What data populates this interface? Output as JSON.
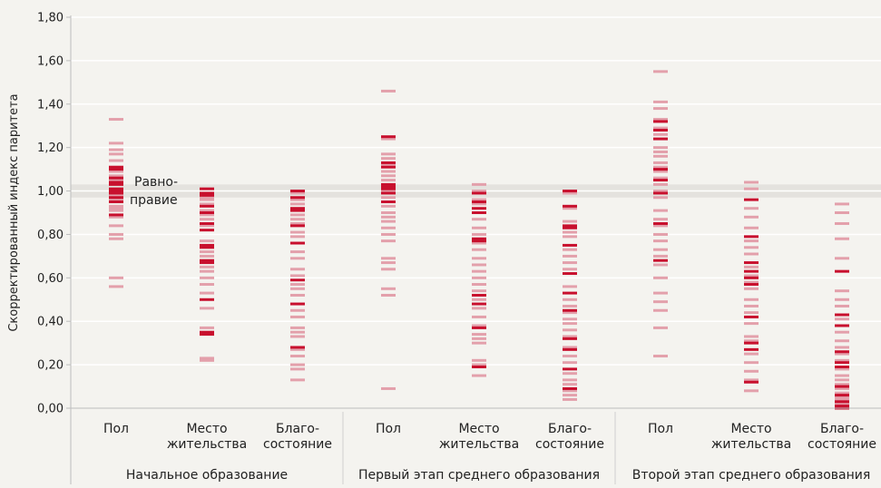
{
  "chart_data": {
    "type": "strip",
    "ylabel": "Скорректированный индекс паритета",
    "ylim": [
      0,
      1.8
    ],
    "yticks": [
      "0,00",
      "0,20",
      "0,40",
      "0,60",
      "0,80",
      "1,00",
      "1,20",
      "1,40",
      "1,60",
      "1,80"
    ],
    "parity_band": {
      "from": 0.97,
      "to": 1.03,
      "label_line1": "Равно-",
      "label_line2": "правие"
    },
    "colors": {
      "dark": "#c8102e",
      "light": "#e3a0ab",
      "band": "#e4e2de",
      "grid": "#ffffff",
      "separator": "#cfcfcf"
    },
    "groups": [
      {
        "label": "Начальное образование",
        "categories": [
          {
            "label_line1": "Пол",
            "label_line2": "",
            "light": [
              1.33,
              1.22,
              1.19,
              1.17,
              1.14,
              1.09,
              1.07,
              1.05,
              1.03,
              0.98,
              0.96,
              0.93,
              0.92,
              0.91,
              0.88,
              0.84,
              0.8,
              0.78,
              0.6,
              0.56
            ],
            "dark": [
              1.11,
              1.1,
              1.06,
              1.04,
              1.03,
              1.01,
              1.0,
              0.99,
              0.97,
              0.95,
              0.89
            ]
          },
          {
            "label_line1": "Место",
            "label_line2": "жительства",
            "light": [
              0.97,
              0.96,
              0.94,
              0.91,
              0.89,
              0.87,
              0.84,
              0.77,
              0.72,
              0.7,
              0.65,
              0.63,
              0.6,
              0.57,
              0.53,
              0.46,
              0.37,
              0.23,
              0.22
            ],
            "dark": [
              1.01,
              0.99,
              0.98,
              0.93,
              0.9,
              0.85,
              0.82,
              0.75,
              0.74,
              0.68,
              0.67,
              0.5,
              0.35,
              0.34
            ]
          },
          {
            "label_line1": "Благо-",
            "label_line2": "состояние",
            "light": [
              0.99,
              0.96,
              0.94,
              0.89,
              0.87,
              0.85,
              0.81,
              0.79,
              0.72,
              0.69,
              0.64,
              0.61,
              0.57,
              0.55,
              0.52,
              0.45,
              0.42,
              0.37,
              0.35,
              0.33,
              0.27,
              0.24,
              0.2,
              0.18,
              0.13
            ],
            "dark": [
              1.0,
              0.97,
              0.92,
              0.91,
              0.84,
              0.76,
              0.59,
              0.48,
              0.28
            ]
          }
        ]
      },
      {
        "label": "Первый этап среднего образования",
        "categories": [
          {
            "label_line1": "Пол",
            "label_line2": "",
            "light": [
              1.46,
              1.24,
              1.17,
              1.15,
              1.12,
              1.09,
              1.07,
              1.05,
              1.0,
              0.97,
              0.93,
              0.9,
              0.88,
              0.86,
              0.83,
              0.8,
              0.77,
              0.69,
              0.67,
              0.64,
              0.55,
              0.52,
              0.09
            ],
            "dark": [
              1.25,
              1.13,
              1.11,
              1.03,
              1.02,
              1.01,
              0.99,
              0.95
            ]
          },
          {
            "label_line1": "Место",
            "label_line2": "жительства",
            "light": [
              1.03,
              1.0,
              0.96,
              0.94,
              0.87,
              0.83,
              0.8,
              0.76,
              0.73,
              0.69,
              0.66,
              0.63,
              0.6,
              0.57,
              0.54,
              0.5,
              0.46,
              0.42,
              0.38,
              0.34,
              0.32,
              0.3,
              0.22,
              0.2,
              0.15
            ],
            "dark": [
              0.99,
              0.95,
              0.92,
              0.9,
              0.78,
              0.77,
              0.52,
              0.48,
              0.37,
              0.19
            ]
          },
          {
            "label_line1": "Благо-",
            "label_line2": "состояние",
            "light": [
              0.99,
              0.92,
              0.86,
              0.81,
              0.79,
              0.73,
              0.7,
              0.67,
              0.64,
              0.56,
              0.5,
              0.47,
              0.44,
              0.41,
              0.39,
              0.36,
              0.33,
              0.28,
              0.24,
              0.21,
              0.16,
              0.13,
              0.11,
              0.08,
              0.06,
              0.04
            ],
            "dark": [
              1.0,
              0.93,
              0.84,
              0.83,
              0.75,
              0.62,
              0.53,
              0.45,
              0.32,
              0.27,
              0.18,
              0.09
            ]
          }
        ]
      },
      {
        "label": "Второй этап среднего образования",
        "categories": [
          {
            "label_line1": "Пол",
            "label_line2": "",
            "light": [
              1.55,
              1.41,
              1.38,
              1.33,
              1.29,
              1.26,
              1.2,
              1.18,
              1.16,
              1.13,
              1.11,
              1.09,
              1.06,
              1.03,
              1.0,
              0.97,
              0.91,
              0.87,
              0.84,
              0.8,
              0.77,
              0.73,
              0.7,
              0.66,
              0.6,
              0.53,
              0.49,
              0.45,
              0.37,
              0.24
            ],
            "dark": [
              1.32,
              1.28,
              1.24,
              1.1,
              1.05,
              0.99,
              0.85,
              0.68
            ]
          },
          {
            "label_line1": "Место",
            "label_line2": "жительства",
            "light": [
              1.04,
              1.01,
              0.92,
              0.88,
              0.83,
              0.77,
              0.74,
              0.71,
              0.65,
              0.61,
              0.58,
              0.55,
              0.5,
              0.47,
              0.44,
              0.39,
              0.33,
              0.31,
              0.25,
              0.21,
              0.17,
              0.13,
              0.08
            ],
            "dark": [
              0.96,
              0.79,
              0.67,
              0.63,
              0.6,
              0.57,
              0.42,
              0.3,
              0.27,
              0.12
            ]
          },
          {
            "label_line1": "Благо-",
            "label_line2": "состояние",
            "light": [
              0.94,
              0.9,
              0.85,
              0.78,
              0.69,
              0.54,
              0.5,
              0.47,
              0.41,
              0.38,
              0.35,
              0.31,
              0.28,
              0.25,
              0.22,
              0.18,
              0.15,
              0.13,
              0.11,
              0.09,
              0.07,
              0.05,
              0.04,
              0.02
            ],
            "dark": [
              0.63,
              0.43,
              0.38,
              0.26,
              0.21,
              0.19,
              0.1,
              0.06,
              0.03,
              0.01,
              0.0
            ]
          }
        ]
      }
    ]
  }
}
